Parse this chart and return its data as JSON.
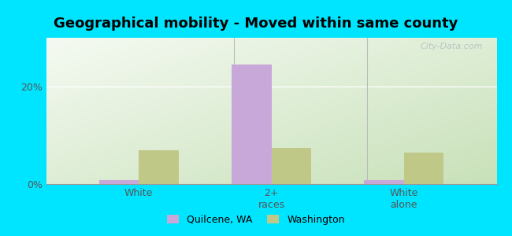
{
  "title": "Geographical mobility - Moved within same county",
  "categories": [
    "White",
    "2+\nraces",
    "White\nalone"
  ],
  "quilcene_values": [
    0.8,
    24.5,
    0.8
  ],
  "washington_values": [
    7.0,
    7.5,
    6.5
  ],
  "quilcene_color": "#c8a8d8",
  "washington_color": "#c0c888",
  "background_color": "#00e5ff",
  "ylim": [
    0,
    30
  ],
  "yticks": [
    0,
    20
  ],
  "ytick_labels": [
    "0%",
    "20%"
  ],
  "bar_width": 0.3,
  "title_fontsize": 13,
  "tick_fontsize": 9,
  "legend_labels": [
    "Quilcene, WA",
    "Washington"
  ],
  "watermark": "City-Data.com",
  "grad_top_left": "#f5faf2",
  "grad_bottom_right": "#d8edcc"
}
